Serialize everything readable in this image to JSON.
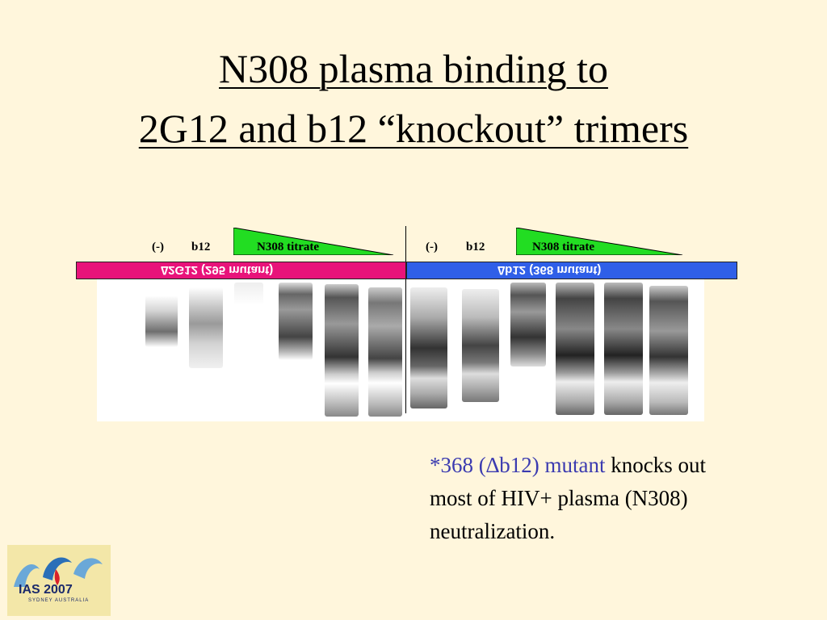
{
  "title": {
    "line1": "N308 plasma binding to",
    "line2": "2G12 and b12 “knockout” trimers"
  },
  "gel": {
    "left_panel": {
      "label_neg": "(-)",
      "label_b12": "b12",
      "label_titrate": "N308 titrate",
      "bar_text": "∆2G12 (295 mutant)",
      "bar_color": "#e8137a"
    },
    "right_panel": {
      "label_neg": "(-)",
      "label_b12": "b12",
      "label_titrate": "N308 titrate",
      "bar_text": "∆b12 (368 mutant)",
      "bar_color": "#2f5fe8"
    },
    "wedge_color": "#22dd22"
  },
  "note": {
    "highlight": "*368 (∆b12) mutant",
    "rest": " knocks out most of HIV+ plasma (N308) neutralization."
  },
  "logo": {
    "text": "IAS 2007",
    "sub": "SYDNEY AUSTRALIA"
  }
}
